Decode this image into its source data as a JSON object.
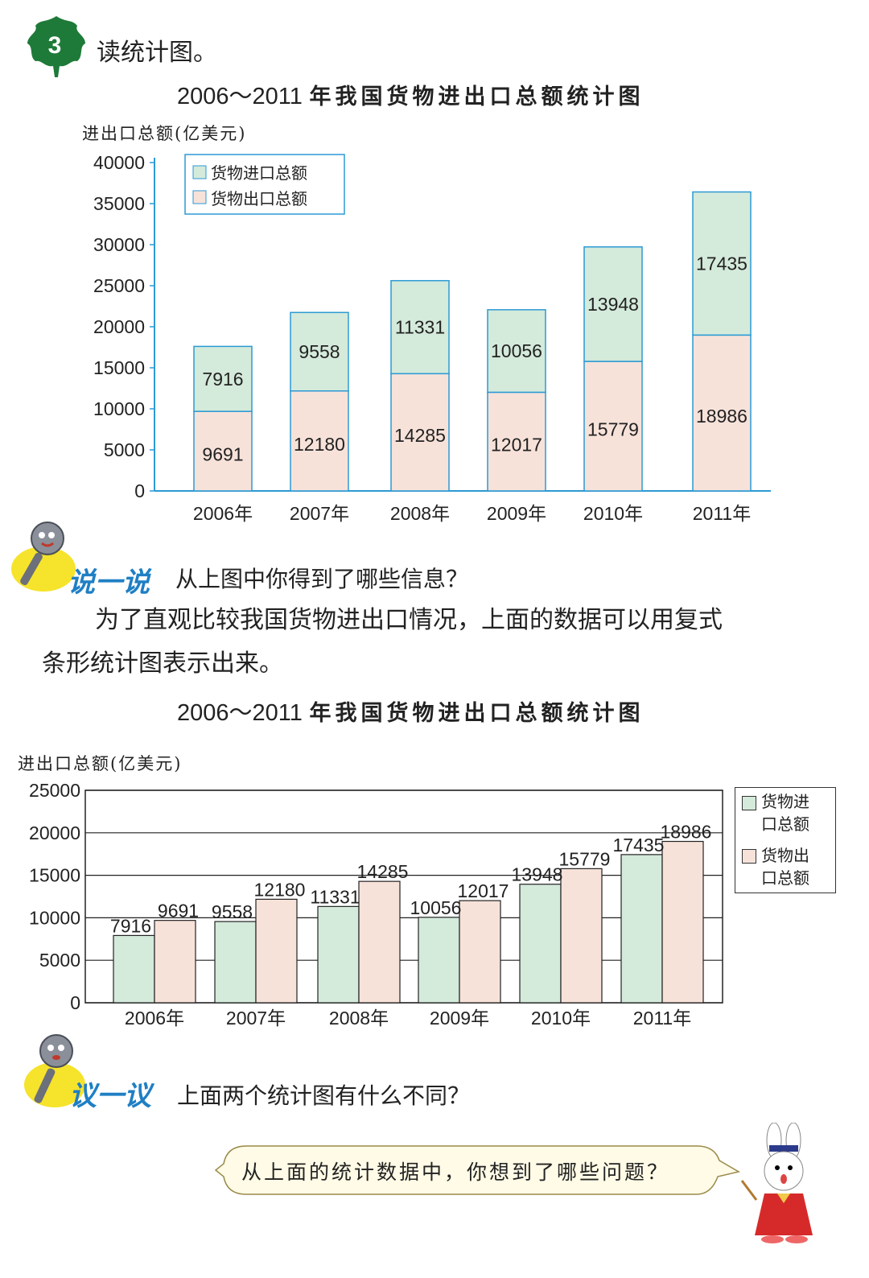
{
  "section": {
    "number": "3",
    "title": "读统计图。"
  },
  "chart1": {
    "title_year": "2006～2011",
    "title_text": "年我国货物进出口总额统计图",
    "ylabel": "进出口总额(亿美元)"
  },
  "chart2": {
    "title_year": "2006～2011",
    "title_text": "年我国货物进出口总额统计图",
    "ylabel": "进出口总额(亿美元)",
    "legend_import_l1": "货物进",
    "legend_import_l2": "口总额",
    "legend_export_l1": "货物出",
    "legend_export_l2": "口总额"
  },
  "say": {
    "label": "说一说",
    "question": "从上图中你得到了哪些信息？"
  },
  "paragraph": {
    "line1": "为了直观比较我国货物进出口情况，上面的数据可以用复式",
    "line2": "条形统计图表示出来。"
  },
  "discuss": {
    "label": "议一议",
    "question": "上面两个统计图有什么不同？"
  },
  "bubble": {
    "text": "从上面的统计数据中，你想到了哪些问题？"
  },
  "colors": {
    "import": "#d4eadb",
    "export": "#f7e2da",
    "axis": "#2c9ad4",
    "bar_border_1": "#2c9ad4",
    "bar_border_2": "#222222",
    "leaf": "#1e7a38"
  },
  "chart_data": [
    {
      "type": "bar",
      "stacked": true,
      "title": "2006～2011年我国货物进出口总额统计图",
      "ylabel": "进出口总额(亿美元)",
      "categories": [
        "2006年",
        "2007年",
        "2008年",
        "2009年",
        "2010年",
        "2011年"
      ],
      "series": [
        {
          "name": "货物出口总额",
          "values": [
            9691,
            12180,
            14285,
            12017,
            15779,
            18986
          ]
        },
        {
          "name": "货物进口总额",
          "values": [
            7916,
            9558,
            11331,
            10056,
            13948,
            17435
          ]
        }
      ],
      "ylim": [
        0,
        40000
      ],
      "yticks": [
        "0",
        "5000",
        "10000",
        "15000",
        "20000",
        "25000",
        "30000",
        "35000",
        "40000"
      ],
      "legend": [
        "货物进口总额",
        "货物出口总额"
      ],
      "legend_position": "top-left",
      "grid": false
    },
    {
      "type": "bar",
      "stacked": false,
      "title": "2006～2011年我国货物进出口总额统计图",
      "ylabel": "进出口总额(亿美元)",
      "categories": [
        "2006年",
        "2007年",
        "2008年",
        "2009年",
        "2010年",
        "2011年"
      ],
      "series": [
        {
          "name": "货物进口总额",
          "values": [
            7916,
            9558,
            11331,
            10056,
            13948,
            17435
          ]
        },
        {
          "name": "货物出口总额",
          "values": [
            9691,
            12180,
            14285,
            12017,
            15779,
            18986
          ]
        }
      ],
      "ylim": [
        0,
        25000
      ],
      "yticks": [
        "0",
        "5000",
        "10000",
        "15000",
        "20000",
        "25000"
      ],
      "legend": [
        "货物进口总额",
        "货物出口总额"
      ],
      "legend_position": "right",
      "grid": true
    }
  ]
}
